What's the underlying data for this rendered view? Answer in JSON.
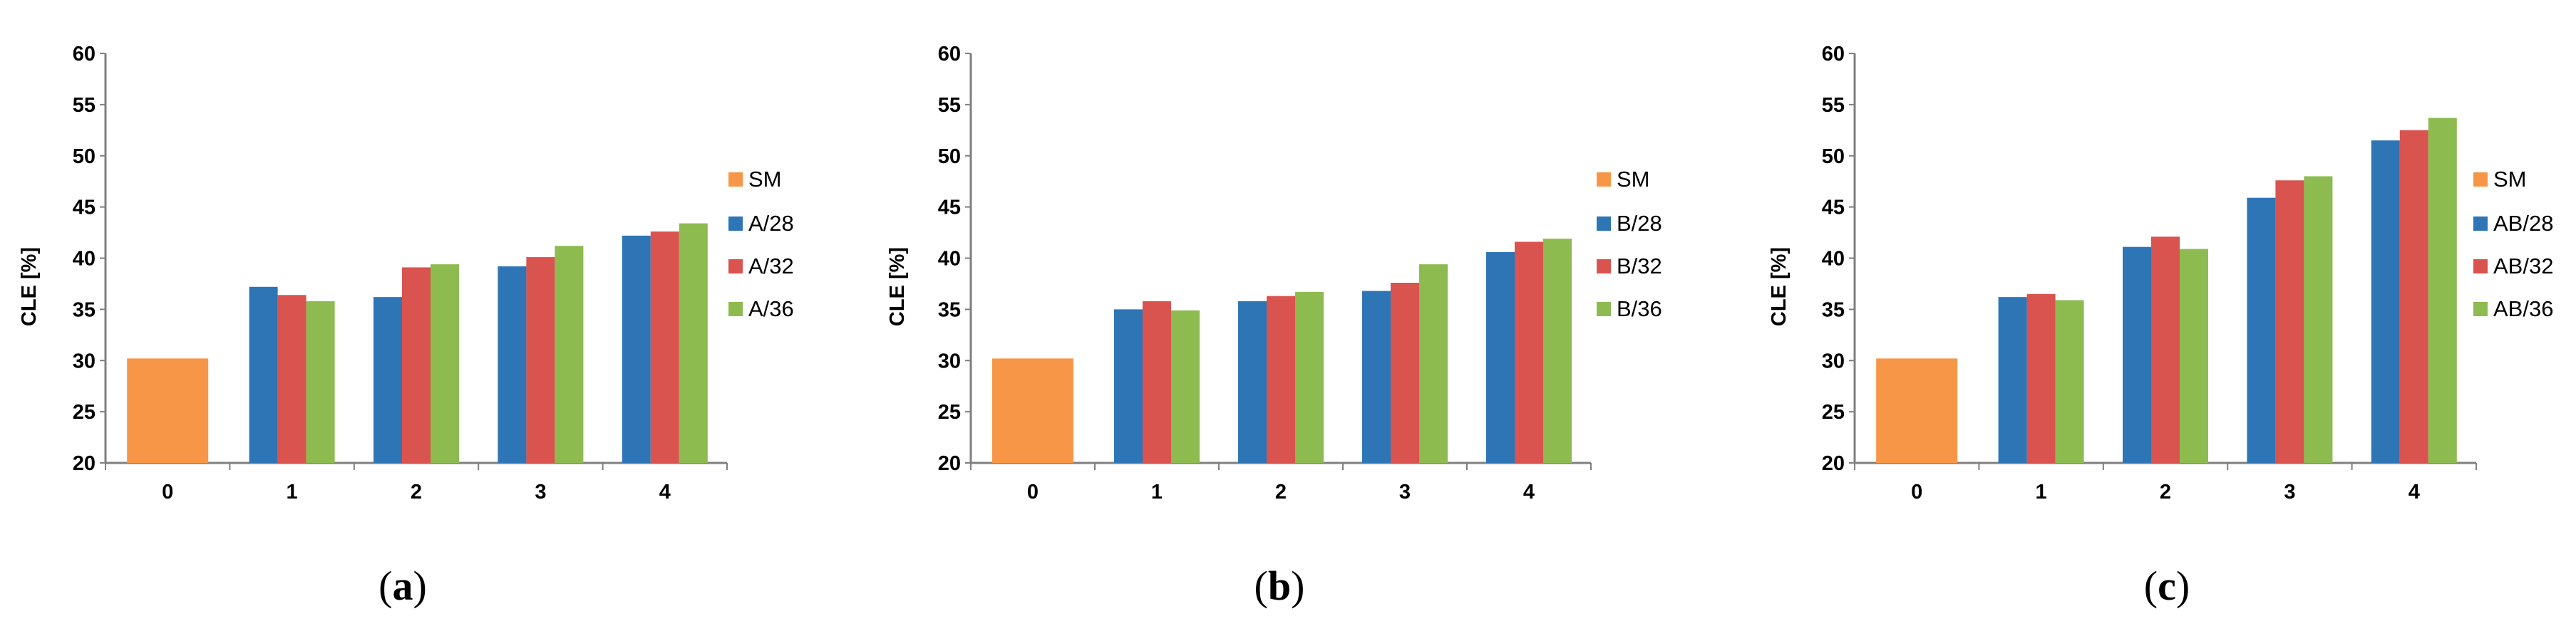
{
  "colors": {
    "SM": "#F79646",
    "28": "#2E75B6",
    "32": "#D9534F",
    "36": "#8DBB4F",
    "axis": "#7F7F7F"
  },
  "chart_data": [
    {
      "type": "bar",
      "panel": "(a)",
      "ylabel": "CLE [%]",
      "ylim": [
        20,
        60
      ],
      "yticks": [
        20,
        25,
        30,
        35,
        40,
        45,
        50,
        55,
        60
      ],
      "categories": [
        "0",
        "1",
        "2",
        "3",
        "4"
      ],
      "grid": false,
      "legend_position": "right",
      "series": [
        {
          "name": "SM",
          "color_key": "SM",
          "values": [
            30.2,
            null,
            null,
            null,
            null
          ]
        },
        {
          "name": "A/28",
          "color_key": "28",
          "values": [
            null,
            37.2,
            36.2,
            39.2,
            42.2
          ]
        },
        {
          "name": "A/32",
          "color_key": "32",
          "values": [
            null,
            36.4,
            39.1,
            40.1,
            42.6
          ]
        },
        {
          "name": "A/36",
          "color_key": "36",
          "values": [
            null,
            35.8,
            39.4,
            41.2,
            43.4
          ]
        }
      ]
    },
    {
      "type": "bar",
      "panel": "(b)",
      "ylabel": "CLE [%]",
      "ylim": [
        20,
        60
      ],
      "yticks": [
        20,
        25,
        30,
        35,
        40,
        45,
        50,
        55,
        60
      ],
      "categories": [
        "0",
        "1",
        "2",
        "3",
        "4"
      ],
      "grid": false,
      "legend_position": "right",
      "series": [
        {
          "name": "SM",
          "color_key": "SM",
          "values": [
            30.2,
            null,
            null,
            null,
            null
          ]
        },
        {
          "name": "B/28",
          "color_key": "28",
          "values": [
            null,
            35.0,
            35.8,
            36.8,
            40.6
          ]
        },
        {
          "name": "B/32",
          "color_key": "32",
          "values": [
            null,
            35.8,
            36.3,
            37.6,
            41.6
          ]
        },
        {
          "name": "B/36",
          "color_key": "36",
          "values": [
            null,
            34.9,
            36.7,
            39.4,
            41.9
          ]
        }
      ]
    },
    {
      "type": "bar",
      "panel": "(c)",
      "ylabel": "CLE [%]",
      "ylim": [
        20,
        60
      ],
      "yticks": [
        20,
        25,
        30,
        35,
        40,
        45,
        50,
        55,
        60
      ],
      "categories": [
        "0",
        "1",
        "2",
        "3",
        "4"
      ],
      "grid": false,
      "legend_position": "right",
      "series": [
        {
          "name": "SM",
          "color_key": "SM",
          "values": [
            30.2,
            null,
            null,
            null,
            null
          ]
        },
        {
          "name": "AB/28",
          "color_key": "28",
          "values": [
            null,
            36.2,
            41.1,
            45.9,
            51.5
          ]
        },
        {
          "name": "AB/32",
          "color_key": "32",
          "values": [
            null,
            36.5,
            42.1,
            47.6,
            52.5
          ]
        },
        {
          "name": "AB/36",
          "color_key": "36",
          "values": [
            null,
            35.9,
            40.9,
            48.0,
            53.7
          ]
        }
      ]
    }
  ]
}
